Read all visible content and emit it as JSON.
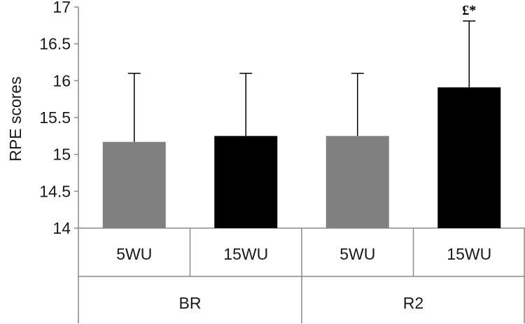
{
  "chart_data": {
    "type": "bar",
    "title": "",
    "ylabel": "RPE scores",
    "xlabel": "",
    "ylim": [
      14,
      17
    ],
    "yticks": [
      14,
      14.5,
      15,
      15.5,
      16,
      16.5,
      17
    ],
    "grid": false,
    "groups": [
      {
        "name": "BR",
        "bars": [
          {
            "label": "5WU",
            "value": 15.17,
            "error": 0.93,
            "color": "#808080"
          },
          {
            "label": "15WU",
            "value": 15.25,
            "error": 0.85,
            "color": "#000000"
          }
        ]
      },
      {
        "name": "R2",
        "bars": [
          {
            "label": "5WU",
            "value": 15.25,
            "error": 0.85,
            "color": "#808080"
          },
          {
            "label": "15WU",
            "value": 15.91,
            "error": 0.9,
            "color": "#000000",
            "annotation": "£*"
          }
        ]
      }
    ]
  }
}
